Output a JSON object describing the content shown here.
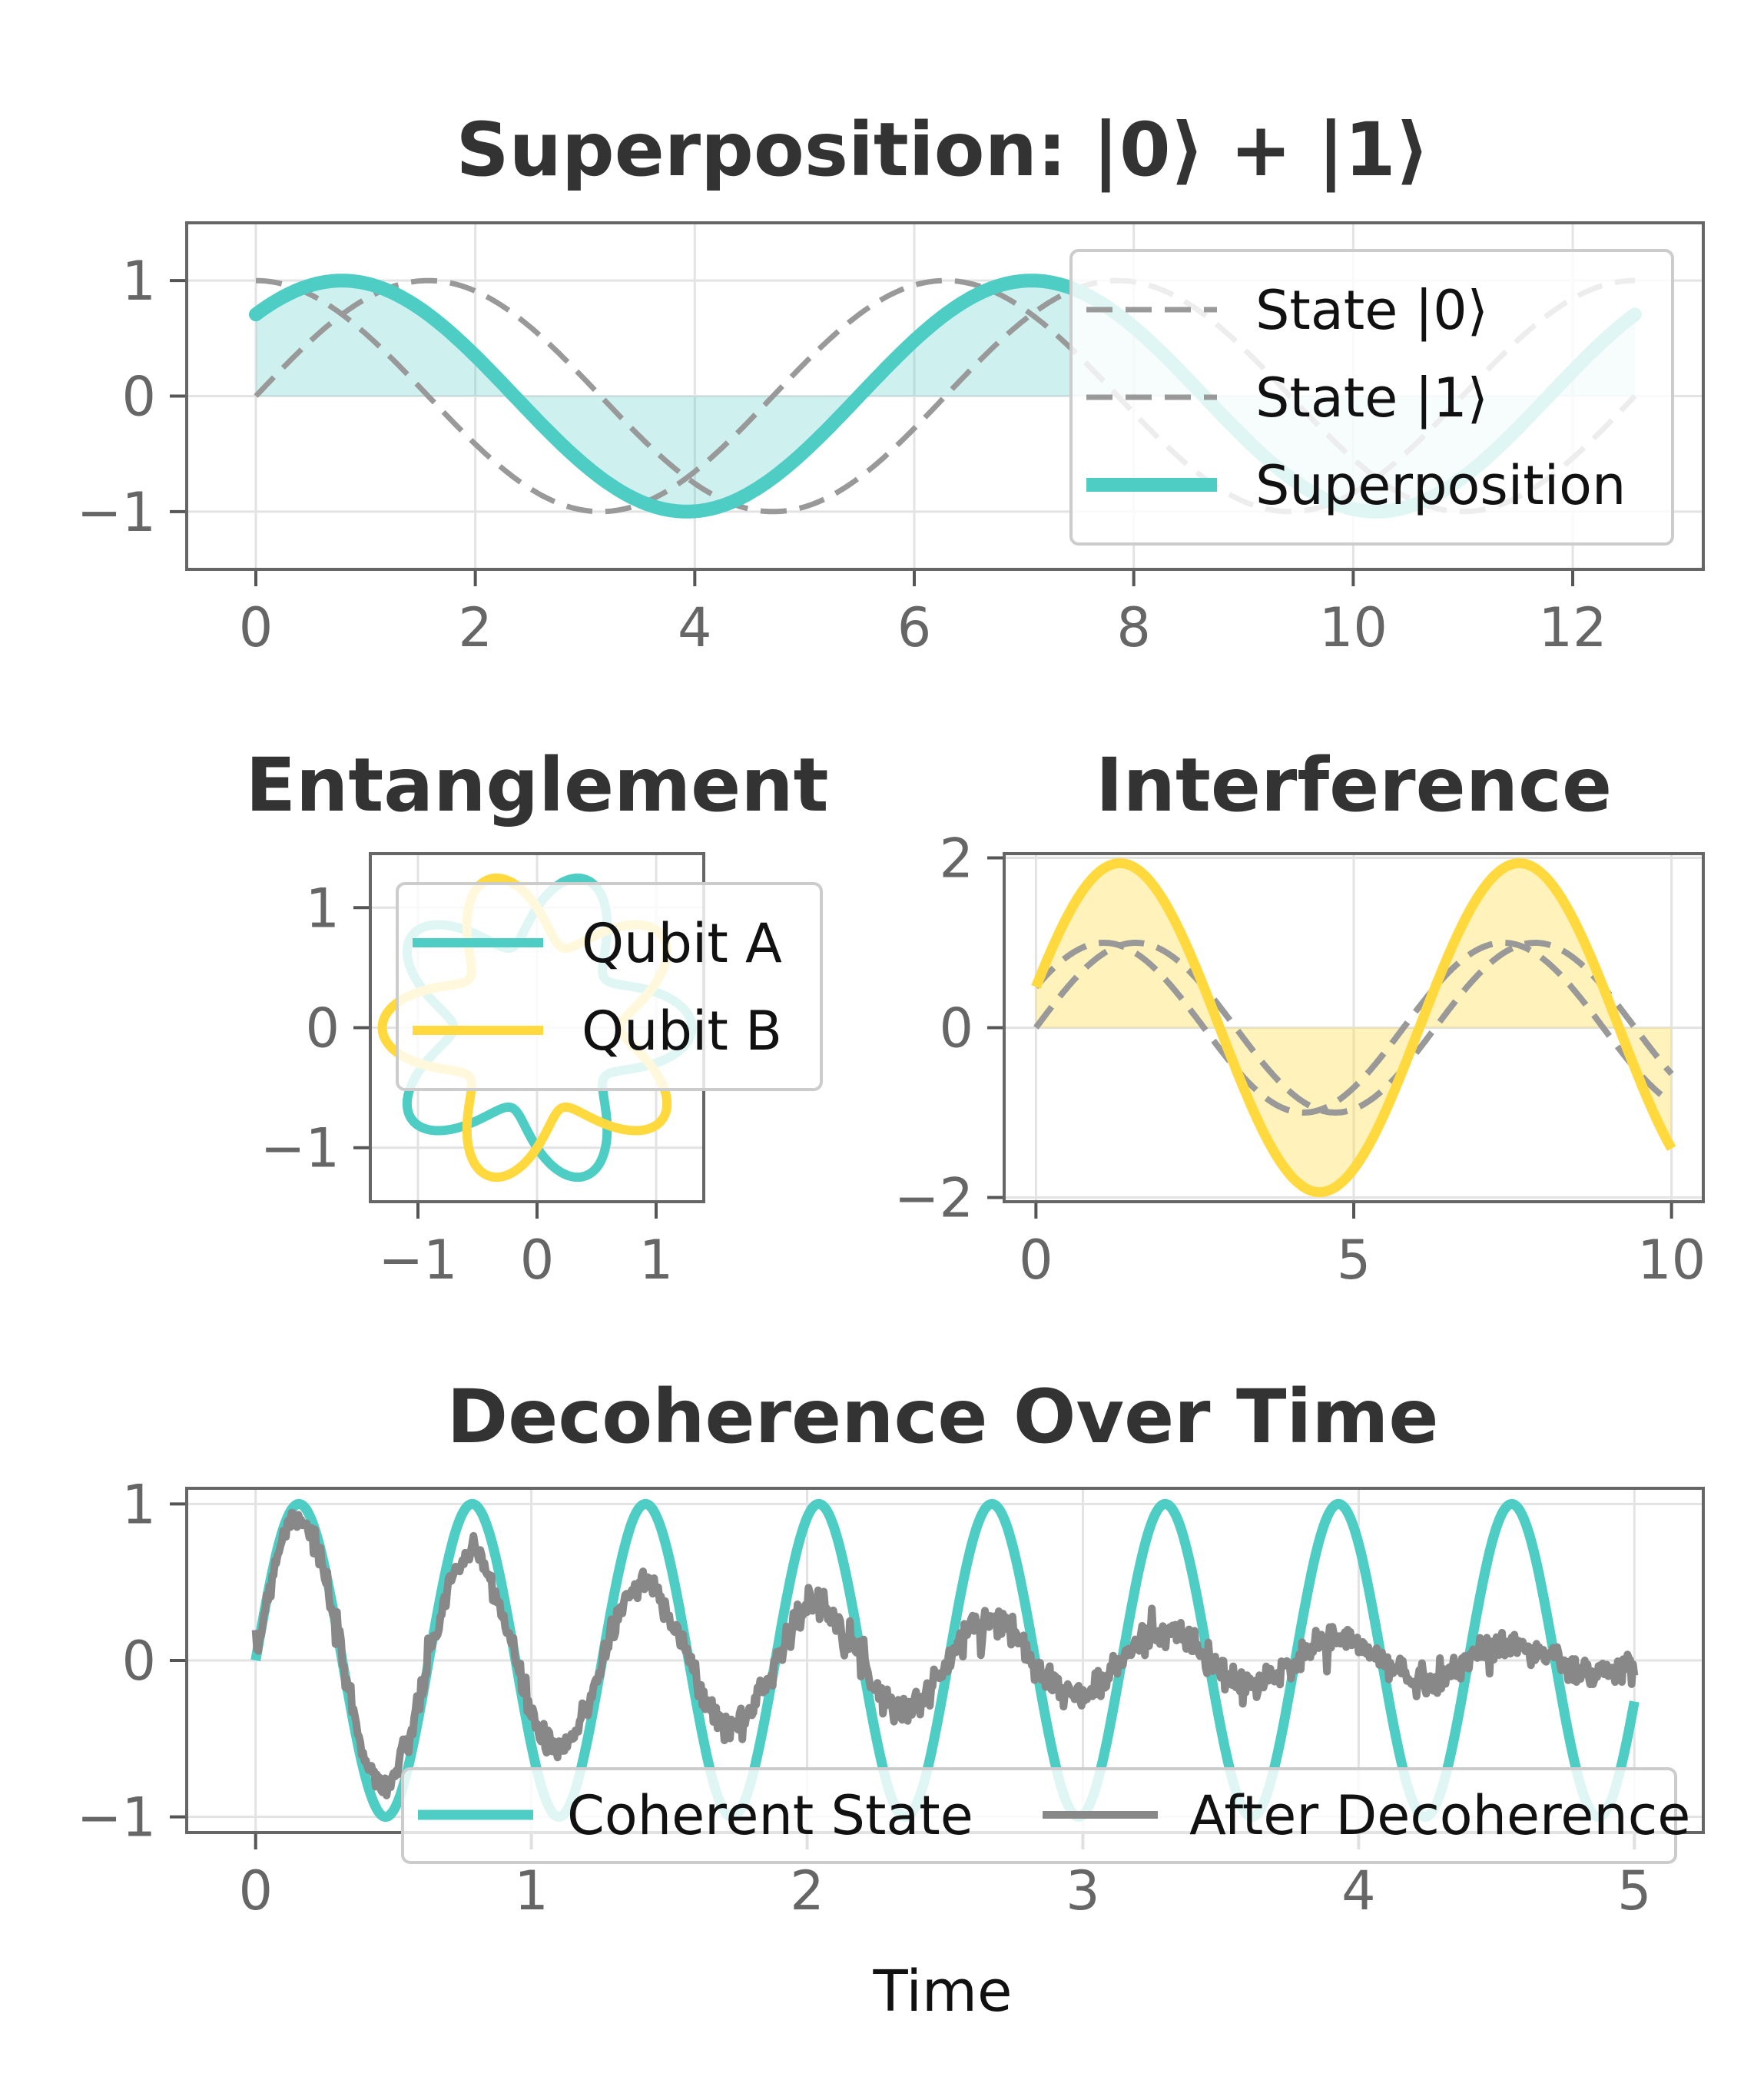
{
  "chart_data": [
    {
      "id": "superposition",
      "type": "line",
      "title": "Superposition: |0⟩ + |1⟩",
      "xlabel": "",
      "ylabel": "",
      "xlim": [
        -0.63,
        13.19
      ],
      "ylim": [
        -1.5,
        1.5
      ],
      "xticks": [
        0,
        2,
        4,
        6,
        8,
        10,
        12
      ],
      "yticks": [
        1,
        0,
        -1
      ],
      "ytick_labels": [
        "1",
        "0",
        "−1"
      ],
      "grid": true,
      "legend": "top-right",
      "x_range": [
        0,
        12.566
      ],
      "series": [
        {
          "name": "State |0⟩",
          "function": "cos(x)",
          "style": "dashed",
          "color": "#999999"
        },
        {
          "name": "State |1⟩",
          "function": "sin(x)",
          "style": "dashed",
          "color": "#999999"
        },
        {
          "name": "Superposition",
          "function": "(cos(x)+sin(x))/sqrt(2)",
          "style": "solid",
          "color": "#4ECDC4",
          "fill_to_zero": true
        }
      ]
    },
    {
      "id": "entanglement",
      "type": "line",
      "title": "Entanglement",
      "xlabel": "",
      "ylabel": "",
      "xlim": [
        -1.4,
        1.4
      ],
      "ylim": [
        -1.45,
        1.45
      ],
      "xticks": [
        -1,
        0,
        1
      ],
      "xtick_labels": [
        "−1",
        "0",
        "1"
      ],
      "yticks": [
        1,
        0,
        -1
      ],
      "ytick_labels": [
        "1",
        "0",
        "−1"
      ],
      "grid": true,
      "legend": "upper center",
      "series": [
        {
          "name": "Qubit A",
          "function": "r = 1 + 0.3*cos(5t), polar",
          "color": "#4ECDC4"
        },
        {
          "name": "Qubit B",
          "function": "r = 1 - 0.3*cos(5t), polar",
          "color": "#FFD93D"
        }
      ]
    },
    {
      "id": "interference",
      "type": "line",
      "title": "Interference",
      "xlabel": "",
      "ylabel": "",
      "xlim": [
        -0.5,
        10.5
      ],
      "ylim": [
        -2.05,
        2.05
      ],
      "xticks": [
        0,
        5,
        10
      ],
      "yticks": [
        2,
        0,
        -2
      ],
      "ytick_labels": [
        "2",
        "0",
        "−2"
      ],
      "grid": true,
      "x_range": [
        0,
        10
      ],
      "series": [
        {
          "name": "",
          "function": "sin(x)",
          "style": "dashed",
          "color": "#999999"
        },
        {
          "name": "",
          "function": "sin(x+0.5)",
          "style": "dashed",
          "color": "#999999"
        },
        {
          "name": "",
          "function": "sin(x)+sin(x+0.5)",
          "style": "solid",
          "color": "#FFD93D",
          "fill_to_zero": true
        }
      ]
    },
    {
      "id": "decoherence",
      "type": "line",
      "title": "Decoherence Over Time",
      "xlabel": "Time",
      "ylabel": "",
      "xlim": [
        -0.25,
        5.25
      ],
      "ylim": [
        -1.1,
        1.1
      ],
      "xticks": [
        0,
        1,
        2,
        3,
        4,
        5
      ],
      "yticks": [
        1,
        0,
        -1
      ],
      "ytick_labels": [
        "1",
        "0",
        "−1"
      ],
      "grid": true,
      "legend": "lower-right",
      "x_range": [
        0,
        5
      ],
      "series": [
        {
          "name": "Coherent State",
          "function": "sin(10x)",
          "color": "#4ECDC4"
        },
        {
          "name": "After Decoherence",
          "function": "sin(10x)*exp(-0.5x) + noise(0.05)",
          "color": "#888888"
        }
      ]
    }
  ]
}
